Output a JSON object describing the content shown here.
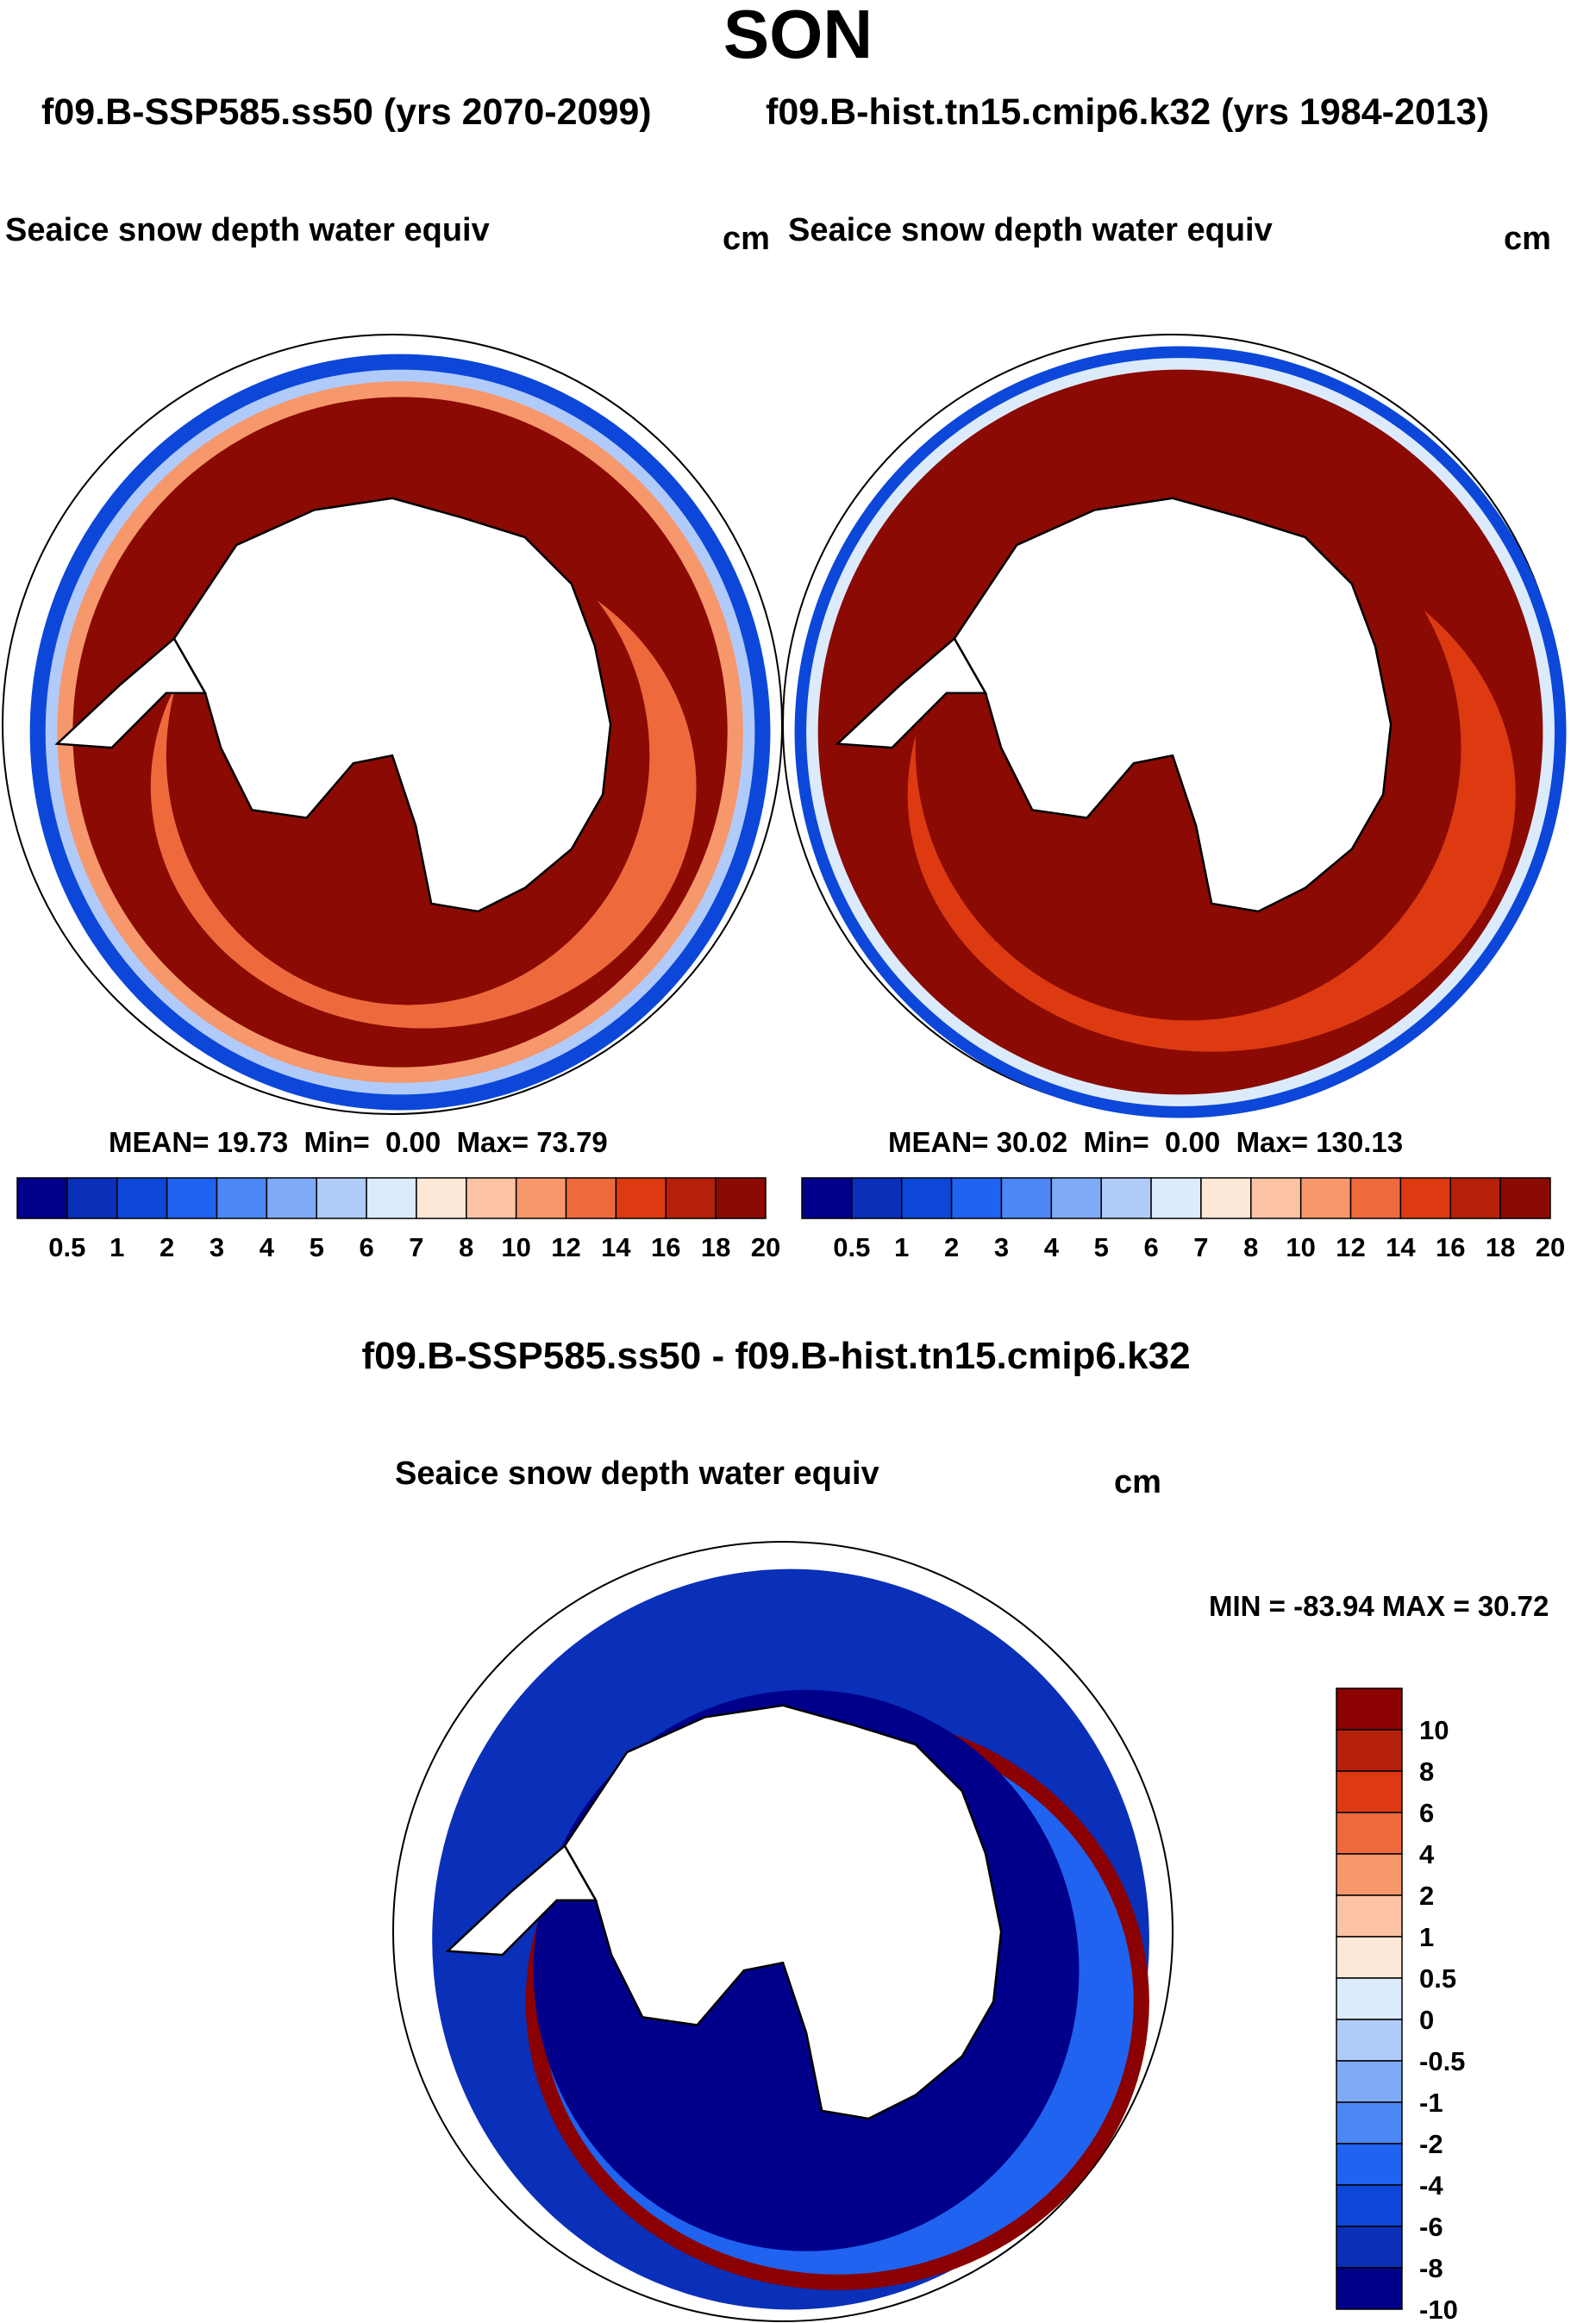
{
  "figure_title": "SON",
  "case_label_left": "f09.B-SSP585.ss50 (yrs 2070-2099)",
  "case_label_right": "f09.B-hist.tn15.cmip6.k32 (yrs 1984-2013)",
  "diff_title": "f09.B-SSP585.ss50 - f09.B-hist.tn15.cmip6.k32",
  "colors": {
    "abs_scale": [
      "#00008b",
      "#0a2fb8",
      "#0c47d9",
      "#1f63f0",
      "#4c87f5",
      "#7eaaf8",
      "#b0cbfa",
      "#dcebfc",
      "#fde7d6",
      "#fcc2a4",
      "#f7976c",
      "#ee6a3c",
      "#dd3a12",
      "#b4200a",
      "#8b0a04"
    ],
    "diff_scale": [
      "#8b0000",
      "#b4200a",
      "#dd3a12",
      "#ee6a3c",
      "#f7976c",
      "#fcc2a4",
      "#fde7d6",
      "#dcebfc",
      "#b0cbfa",
      "#7eaaf8",
      "#4c87f5",
      "#1f63f0",
      "#0c47d9",
      "#0a2fb8",
      "#00008b"
    ],
    "land": "#ffffff",
    "coast": "#000000"
  },
  "chart_data": [
    {
      "type": "heatmap",
      "projection": "south-polar-stereographic",
      "title": "Seaice snow depth water equiv",
      "units": "cm",
      "case": "f09.B-SSP585.ss50 (yrs 2070-2099)",
      "stats": {
        "mean_label": "MEAN=",
        "mean": "19.73",
        "min_label": "Min=",
        "min": "0.00",
        "max_label": "Max=",
        "max": "73.79"
      },
      "colorbar_labels": [
        "0.5",
        "1",
        "2",
        "3",
        "4",
        "5",
        "6",
        "7",
        "8",
        "10",
        "12",
        "14",
        "16",
        "18",
        "20"
      ]
    },
    {
      "type": "heatmap",
      "projection": "south-polar-stereographic",
      "title": "Seaice snow depth water equiv",
      "units": "cm",
      "case": "f09.B-hist.tn15.cmip6.k32 (yrs 1984-2013)",
      "stats": {
        "mean_label": "MEAN=",
        "mean": "30.02",
        "min_label": "Min=",
        "min": "0.00",
        "max_label": "Max=",
        "max": "130.13"
      },
      "colorbar_labels": [
        "0.5",
        "1",
        "2",
        "3",
        "4",
        "5",
        "6",
        "7",
        "8",
        "10",
        "12",
        "14",
        "16",
        "18",
        "20"
      ]
    },
    {
      "type": "heatmap",
      "projection": "south-polar-stereographic",
      "title": "Seaice snow depth water equiv",
      "units": "cm",
      "case": "f09.B-SSP585.ss50 - f09.B-hist.tn15.cmip6.k32",
      "stats": {
        "min_label": "MIN =",
        "min": "-83.94",
        "max_label": "MAX =",
        "max": "30.72"
      },
      "colorbar_labels": [
        "10",
        "8",
        "6",
        "4",
        "2",
        "1",
        "0.5",
        "0",
        "-0.5",
        "-1",
        "-2",
        "-4",
        "-6",
        "-8",
        "-10"
      ]
    }
  ]
}
